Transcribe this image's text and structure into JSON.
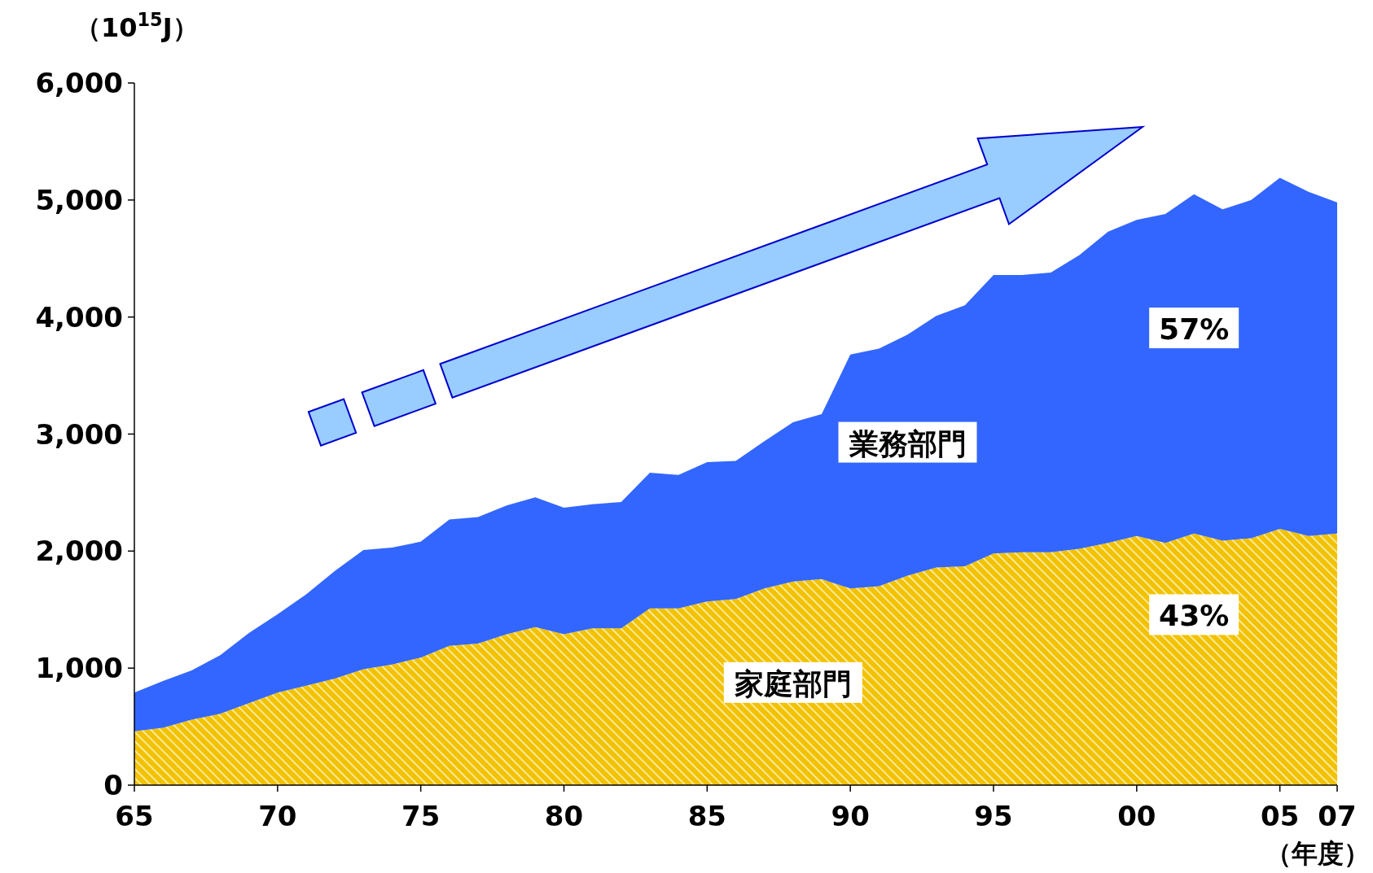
{
  "chart_data": {
    "type": "area",
    "stacked": true,
    "ylabel": "（10$^{15}$J）",
    "xlabel": "（年度）",
    "x": [
      1965,
      1966,
      1967,
      1968,
      1969,
      1970,
      1971,
      1972,
      1973,
      1974,
      1975,
      1976,
      1977,
      1978,
      1979,
      1980,
      1981,
      1982,
      1983,
      1984,
      1985,
      1986,
      1987,
      1988,
      1989,
      1990,
      1991,
      1992,
      1993,
      1994,
      1995,
      1996,
      1997,
      1998,
      1999,
      2000,
      2001,
      2002,
      2003,
      2004,
      2005,
      2006,
      2007
    ],
    "series": [
      {
        "name": "家庭部門",
        "color": "#f2c200",
        "values": [
          460,
          490,
          560,
          610,
          700,
          790,
          850,
          910,
          990,
          1030,
          1090,
          1190,
          1210,
          1290,
          1350,
          1290,
          1340,
          1340,
          1510,
          1510,
          1570,
          1590,
          1680,
          1740,
          1760,
          1680,
          1700,
          1790,
          1860,
          1870,
          1980,
          1990,
          1990,
          2020,
          2070,
          2130,
          2070,
          2150,
          2090,
          2110,
          2190,
          2130,
          2150
        ]
      },
      {
        "name": "業務部門",
        "color": "#3366ff",
        "values": [
          330,
          400,
          420,
          500,
          600,
          670,
          780,
          920,
          1020,
          1000,
          990,
          1080,
          1080,
          1100,
          1110,
          1080,
          1060,
          1080,
          1160,
          1140,
          1190,
          1180,
          1260,
          1360,
          1410,
          2000,
          2030,
          2060,
          2150,
          2230,
          2380,
          2370,
          2390,
          2510,
          2660,
          2700,
          2810,
          2900,
          2830,
          2890,
          3000,
          2940,
          2830
        ]
      }
    ],
    "xlim": [
      1965,
      2007
    ],
    "xticks": [
      {
        "value": 1965,
        "label": "65"
      },
      {
        "value": 1970,
        "label": "70"
      },
      {
        "value": 1975,
        "label": "75"
      },
      {
        "value": 1980,
        "label": "80"
      },
      {
        "value": 1985,
        "label": "85"
      },
      {
        "value": 1990,
        "label": "90"
      },
      {
        "value": 1995,
        "label": "95"
      },
      {
        "value": 2000,
        "label": "00"
      },
      {
        "value": 2005,
        "label": "05"
      },
      {
        "value": 2007,
        "label": "07"
      }
    ],
    "ylim": [
      0,
      6000
    ],
    "yticks": [
      0,
      {
        "value": 1000,
        "label": "1,000"
      },
      {
        "value": 2000,
        "label": "2,000"
      },
      {
        "value": 3000,
        "label": "3,000"
      },
      {
        "value": 4000,
        "label": "4,000"
      },
      {
        "value": 5000,
        "label": "5,000"
      },
      {
        "value": 6000,
        "label": "6,000"
      }
    ],
    "annotations": [
      "57%",
      "43%"
    ],
    "grid": false
  }
}
